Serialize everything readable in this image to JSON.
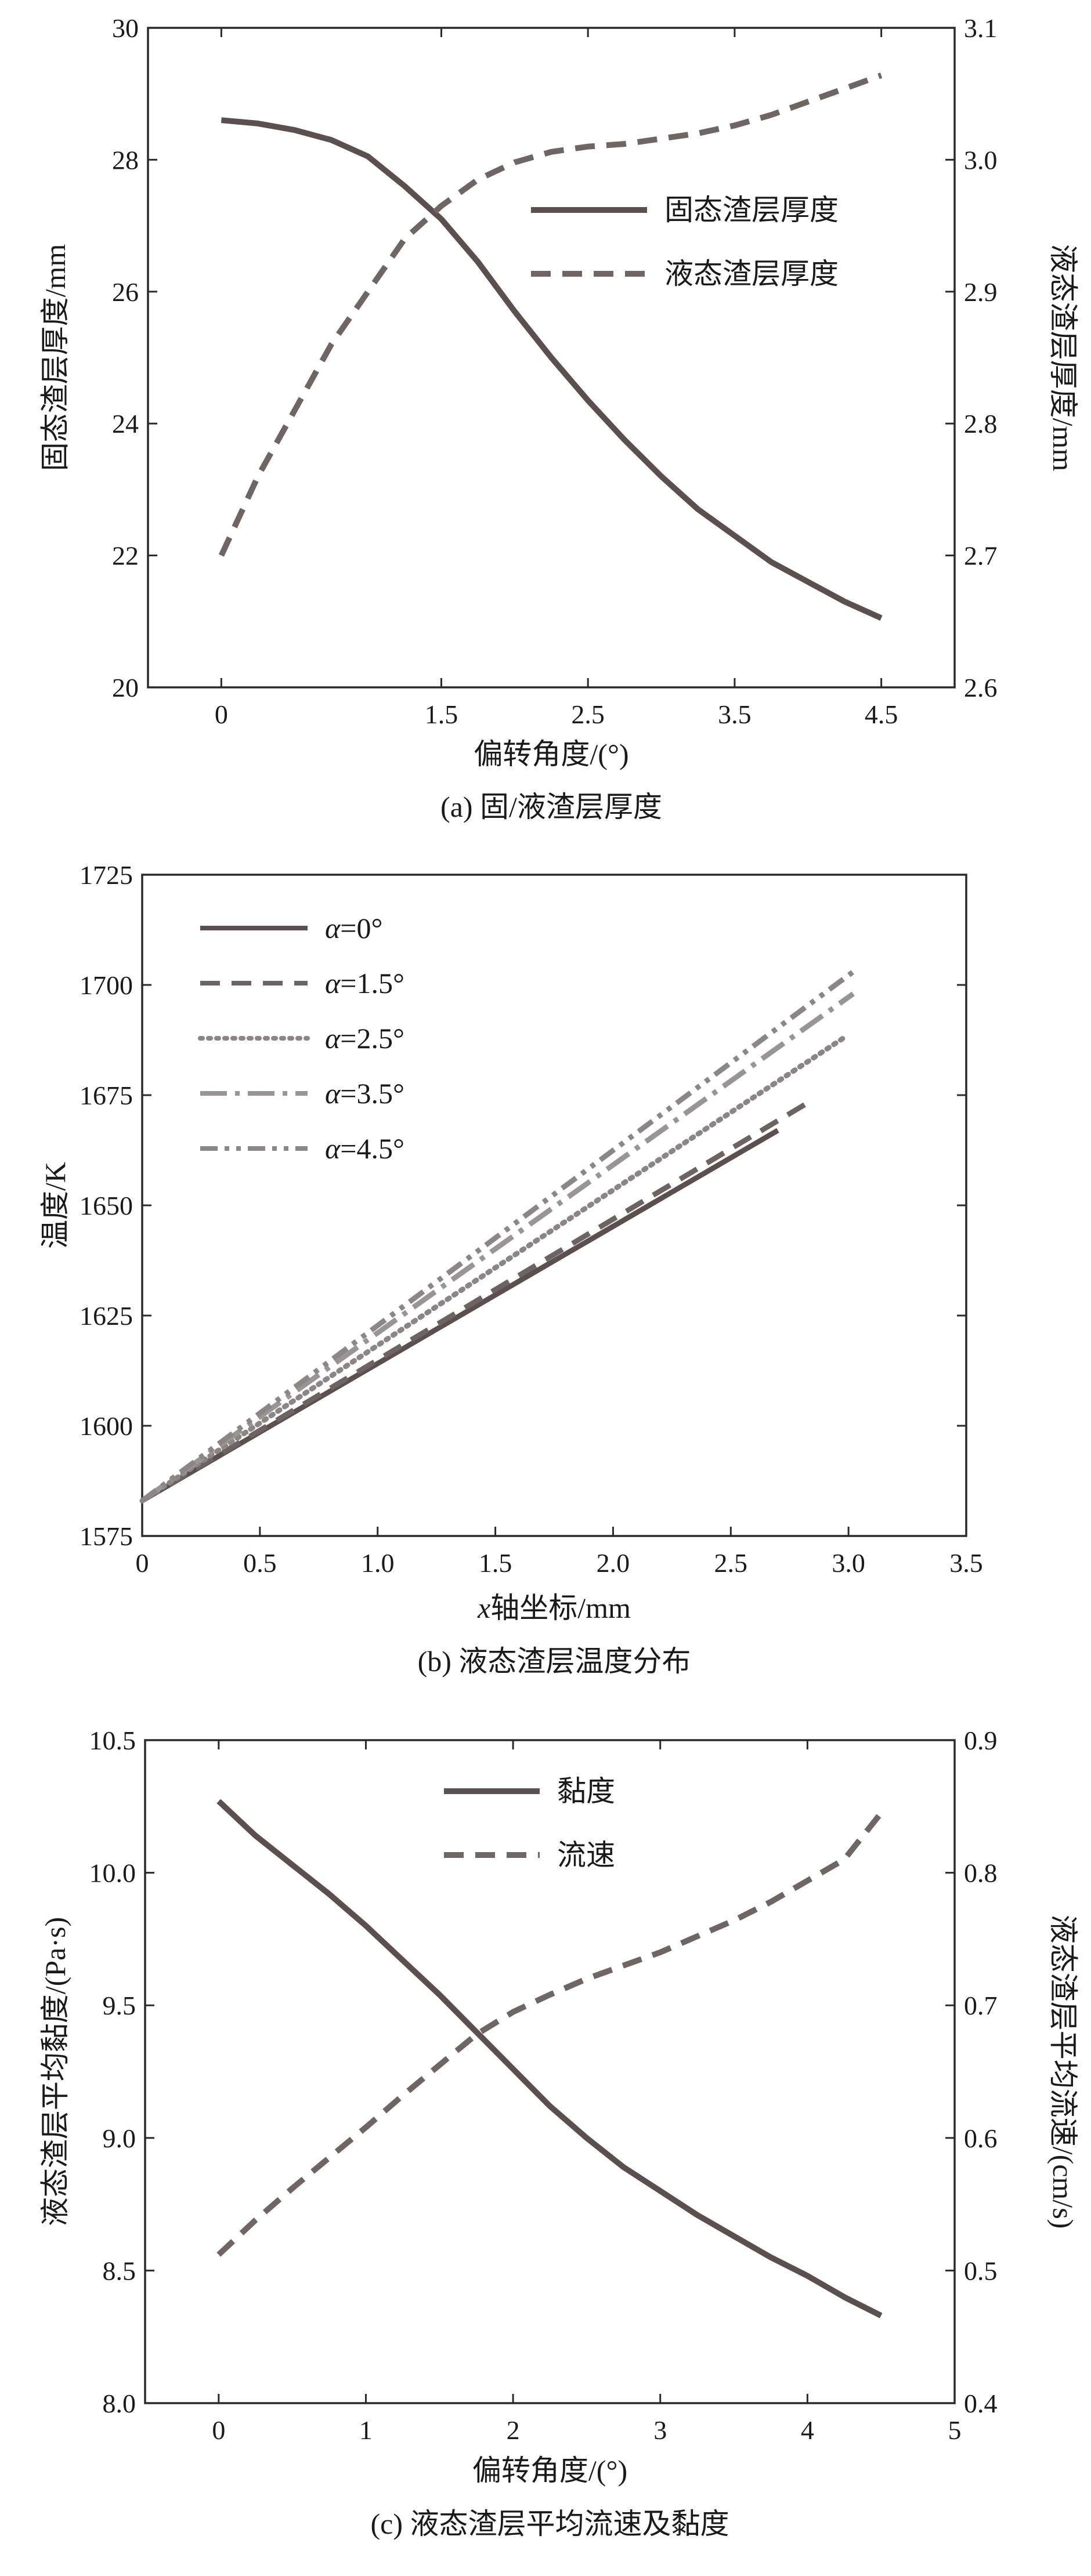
{
  "chart_data": [
    {
      "type": "line",
      "caption": "(a) 固/液渣层厚度",
      "xlabel": "偏转角度/(°)",
      "ylabel": "固态渣层厚度/mm",
      "y2label": "液态渣层厚度/mm",
      "xlim": [
        -0.5,
        5.0
      ],
      "ylim": [
        20,
        30
      ],
      "y2lim": [
        2.6,
        3.1
      ],
      "xticks": [
        0,
        1.5,
        2.5,
        3.5,
        4.5
      ],
      "xtick_labels": [
        "0",
        "1.5",
        "2.5",
        "3.5",
        "4.5"
      ],
      "yticks": [
        20,
        22,
        24,
        26,
        28,
        30
      ],
      "ytick_labels": [
        "20",
        "22",
        "24",
        "26",
        "28",
        "30"
      ],
      "y2ticks": [
        2.6,
        2.7,
        2.8,
        2.9,
        3.0,
        3.1
      ],
      "y2tick_labels": [
        "2.6",
        "2.7",
        "2.8",
        "2.9",
        "3.0",
        "3.1"
      ],
      "legend_position": "top-right",
      "grid": false,
      "series": [
        {
          "name": "固态渣层厚度",
          "axis": "left",
          "style": "solid",
          "color": "#5c4f4f",
          "x": [
            0,
            0.25,
            0.5,
            0.75,
            1.0,
            1.25,
            1.5,
            1.75,
            2.0,
            2.25,
            2.5,
            2.75,
            3.0,
            3.25,
            3.5,
            3.75,
            4.0,
            4.25,
            4.5
          ],
          "y": [
            28.6,
            28.55,
            28.45,
            28.3,
            28.05,
            27.6,
            27.1,
            26.45,
            25.7,
            25.0,
            24.35,
            23.75,
            23.2,
            22.7,
            22.3,
            21.9,
            21.6,
            21.3,
            21.05
          ]
        },
        {
          "name": "液态渣层厚度",
          "axis": "right",
          "style": "dashed",
          "color": "#6f6565",
          "x": [
            0,
            0.25,
            0.5,
            0.75,
            1.0,
            1.25,
            1.5,
            1.75,
            2.0,
            2.25,
            2.5,
            2.75,
            3.0,
            3.25,
            3.5,
            3.75,
            4.0,
            4.25,
            4.5
          ],
          "y": [
            2.7,
            2.76,
            2.81,
            2.86,
            2.9,
            2.94,
            2.965,
            2.985,
            2.998,
            3.006,
            3.01,
            3.012,
            3.016,
            3.02,
            3.026,
            3.034,
            3.044,
            3.054,
            3.064
          ]
        }
      ]
    },
    {
      "type": "line",
      "caption": "(b) 液态渣层温度分布",
      "xlabel": "x轴坐标/mm",
      "xlabel_var": "x",
      "xlabel_rest": "轴坐标/mm",
      "ylabel": "温度/K",
      "xlim": [
        0,
        3.5
      ],
      "ylim": [
        1575,
        1725
      ],
      "xticks": [
        0,
        0.5,
        1.0,
        1.5,
        2.0,
        2.5,
        3.0,
        3.5
      ],
      "xtick_labels": [
        "0",
        "0.5",
        "1.0",
        "1.5",
        "2.0",
        "2.5",
        "3.0",
        "3.5"
      ],
      "yticks": [
        1575,
        1600,
        1625,
        1650,
        1675,
        1700,
        1725
      ],
      "ytick_labels": [
        "1575",
        "1600",
        "1625",
        "1650",
        "1675",
        "1700",
        "1725"
      ],
      "legend_position": "top-left",
      "grid": false,
      "series": [
        {
          "name": "α=0°",
          "greek": "α",
          "label_rest": "=0°",
          "style": "solid",
          "color": "#5c4f4f",
          "x": [
            0,
            2.7
          ],
          "y": [
            1583,
            1667
          ]
        },
        {
          "name": "α=1.5°",
          "greek": "α",
          "label_rest": "=1.5°",
          "style": "dashed",
          "color": "#6d6363",
          "x": [
            0,
            2.85
          ],
          "y": [
            1583,
            1674
          ]
        },
        {
          "name": "α=2.5°",
          "greek": "α",
          "label_rest": "=2.5°",
          "style": "dotted",
          "color": "#8b8585",
          "x": [
            0,
            2.98
          ],
          "y": [
            1583,
            1688
          ]
        },
        {
          "name": "α=3.5°",
          "greek": "α",
          "label_rest": "=3.5°",
          "style": "dashdot",
          "color": "#9a9595",
          "x": [
            0,
            3.02
          ],
          "y": [
            1583,
            1698
          ]
        },
        {
          "name": "α=4.5°",
          "greek": "α",
          "label_rest": "=4.5°",
          "style": "dashdotdot",
          "color": "#8d8686",
          "x": [
            0,
            3.02
          ],
          "y": [
            1583,
            1703
          ]
        }
      ]
    },
    {
      "type": "line",
      "caption": "(c) 液态渣层平均流速及黏度",
      "xlabel": "偏转角度/(°)",
      "ylabel": "液态渣层平均黏度/(Pa·s)",
      "y2label": "液态渣层平均流速/(cm/s)",
      "xlim": [
        -0.5,
        5.0
      ],
      "ylim": [
        8.0,
        10.5
      ],
      "y2lim": [
        0.4,
        0.9
      ],
      "xticks": [
        0,
        1,
        2,
        3,
        4,
        5
      ],
      "xtick_labels": [
        "0",
        "1",
        "2",
        "3",
        "4",
        "5"
      ],
      "yticks": [
        8.0,
        8.5,
        9.0,
        9.5,
        10.0,
        10.5
      ],
      "ytick_labels": [
        "8.0",
        "8.5",
        "9.0",
        "9.5",
        "10.0",
        "10.5"
      ],
      "y2ticks": [
        0.4,
        0.5,
        0.6,
        0.7,
        0.8,
        0.9
      ],
      "y2tick_labels": [
        "0.4",
        "0.5",
        "0.6",
        "0.7",
        "0.8",
        "0.9"
      ],
      "legend_position": "top-center",
      "grid": false,
      "series": [
        {
          "name": "黏度",
          "axis": "left",
          "style": "solid",
          "color": "#5c4f4f",
          "x": [
            0,
            0.25,
            0.5,
            0.75,
            1.0,
            1.25,
            1.5,
            1.75,
            2.0,
            2.25,
            2.5,
            2.75,
            3.0,
            3.25,
            3.5,
            3.75,
            4.0,
            4.25,
            4.5
          ],
          "y": [
            10.27,
            10.14,
            10.03,
            9.92,
            9.8,
            9.67,
            9.54,
            9.4,
            9.26,
            9.12,
            9.0,
            8.89,
            8.8,
            8.71,
            8.63,
            8.55,
            8.48,
            8.4,
            8.33
          ]
        },
        {
          "name": "流速",
          "axis": "right",
          "style": "dashed",
          "color": "#6f6565",
          "x": [
            0,
            0.25,
            0.5,
            0.75,
            1.0,
            1.25,
            1.5,
            1.75,
            2.0,
            2.25,
            2.5,
            2.75,
            3.0,
            3.25,
            3.5,
            3.75,
            4.0,
            4.25,
            4.5
          ],
          "y": [
            0.512,
            0.538,
            0.562,
            0.585,
            0.608,
            0.632,
            0.655,
            0.678,
            0.695,
            0.708,
            0.72,
            0.73,
            0.74,
            0.752,
            0.764,
            0.778,
            0.794,
            0.81,
            0.845
          ]
        }
      ]
    }
  ]
}
